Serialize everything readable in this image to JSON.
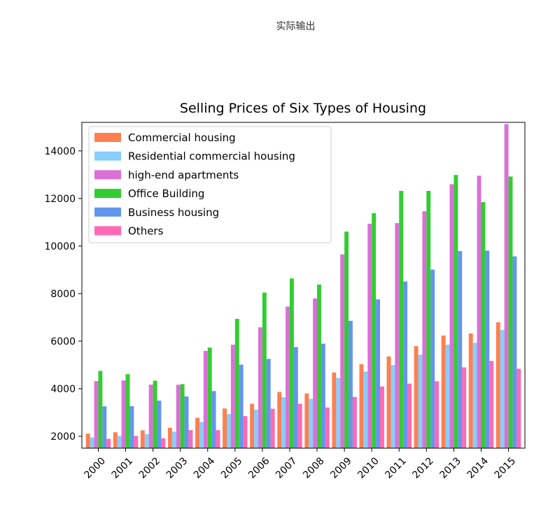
{
  "page": {
    "caption": "实际输出"
  },
  "chart_data": {
    "type": "bar",
    "title": "Selling Prices of Six Types of Housing",
    "xlabel": "",
    "ylabel": "",
    "ylim": [
      1500,
      15200
    ],
    "yticks": [
      2000,
      4000,
      6000,
      8000,
      10000,
      12000,
      14000
    ],
    "categories": [
      "2000",
      "2001",
      "2002",
      "2003",
      "2004",
      "2005",
      "2006",
      "2007",
      "2008",
      "2009",
      "2010",
      "2011",
      "2012",
      "2013",
      "2014",
      "2015"
    ],
    "legend_position": "top-left",
    "series": [
      {
        "name": "Commercial housing",
        "color": "#ff7f50",
        "values": [
          2112,
          2170,
          2250,
          2359,
          2778,
          3168,
          3367,
          3864,
          3800,
          4681,
          5032,
          5357,
          5790,
          6237,
          6324,
          6793
        ]
      },
      {
        "name": "Residential commercial housing",
        "color": "#87cefa",
        "values": [
          1948,
          2017,
          2092,
          2197,
          2608,
          2937,
          3119,
          3645,
          3576,
          4459,
          4725,
          4993,
          5430,
          5850,
          5933,
          6473
        ]
      },
      {
        "name": "high-end apartments",
        "color": "#da70d6",
        "values": [
          4316,
          4348,
          4172,
          4169,
          5590,
          5850,
          6580,
          7450,
          7797,
          9652,
          10937,
          10963,
          11460,
          12600,
          12957,
          15127
        ]
      },
      {
        "name": "Office Building",
        "color": "#32cd32",
        "values": [
          4751,
          4612,
          4339,
          4193,
          5730,
          6937,
          8043,
          8636,
          8379,
          10606,
          11383,
          12317,
          12320,
          12988,
          11844,
          12924
        ]
      },
      {
        "name": "Business housing",
        "color": "#6495ed",
        "values": [
          3260,
          3265,
          3499,
          3674,
          3902,
          5012,
          5253,
          5751,
          5894,
          6856,
          7757,
          8508,
          9010,
          9788,
          9805,
          9566
        ]
      },
      {
        "name": "Others",
        "color": "#ff69b4",
        "values": [
          1895,
          2017,
          1918,
          2258,
          2257,
          2846,
          3158,
          3368,
          3210,
          3654,
          4096,
          4216,
          4313,
          4898,
          5170,
          4840
        ]
      }
    ]
  }
}
